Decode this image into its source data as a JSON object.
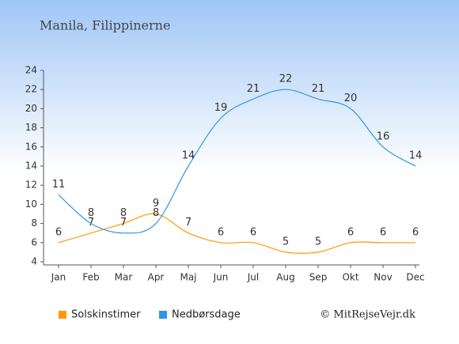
{
  "chart_data": {
    "type": "line",
    "title": "Manila, Filippinerne",
    "categories": [
      "Jan",
      "Feb",
      "Mar",
      "Apr",
      "Maj",
      "Jun",
      "Jul",
      "Aug",
      "Sep",
      "Okt",
      "Nov",
      "Dec"
    ],
    "series": [
      {
        "name": "Solskinstimer",
        "color": "#ff9900",
        "values": [
          6,
          7,
          8,
          9,
          7,
          6,
          6,
          5,
          5,
          6,
          6,
          6
        ]
      },
      {
        "name": "Nedbørsdage",
        "color": "#2f96e4",
        "values": [
          11,
          8,
          7,
          8,
          14,
          19,
          21,
          22,
          21,
          20,
          16,
          14
        ]
      }
    ],
    "ylim": [
      4,
      24
    ],
    "yticks": [
      4,
      6,
      8,
      10,
      12,
      14,
      16,
      18,
      20,
      22,
      24
    ],
    "legend": "bottom",
    "credit": "© MitRejseVejr.dk"
  }
}
